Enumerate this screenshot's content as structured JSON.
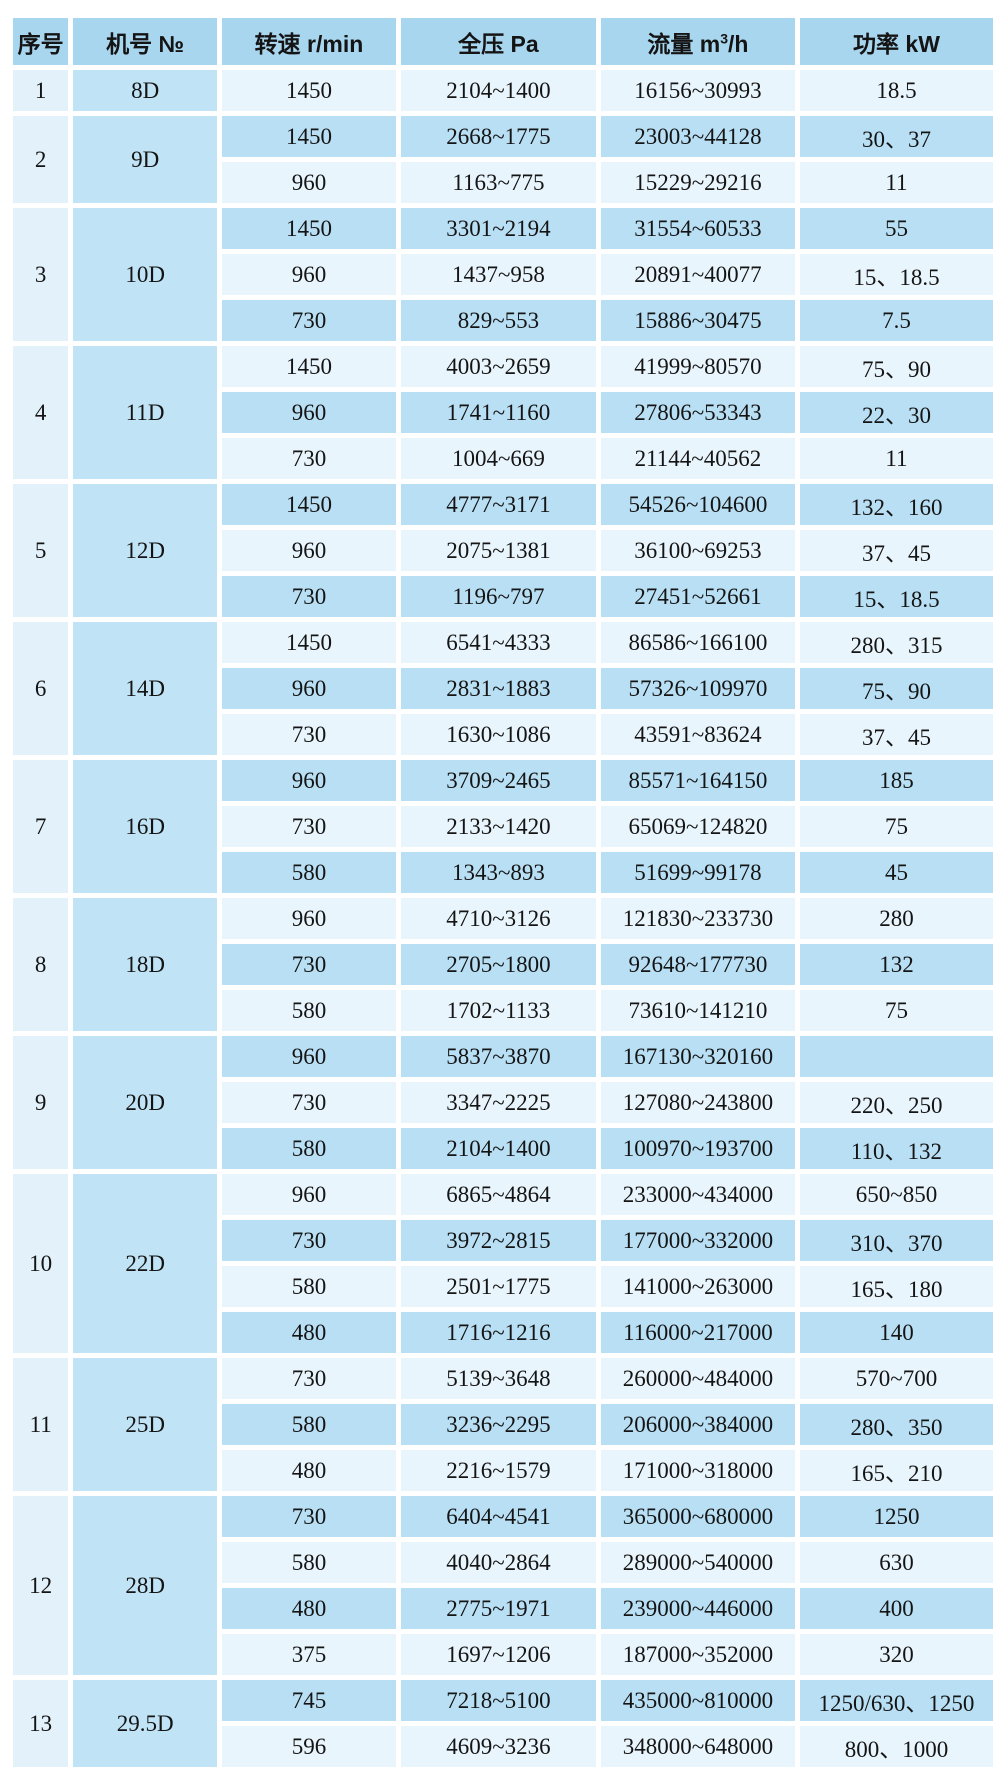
{
  "table": {
    "title_semantic": "fan-specification-table",
    "columns": {
      "index": "序号",
      "model": "机号 №",
      "speed": "转速 r/min",
      "pressure": "全压 Pa",
      "flow_pre": "流量 m",
      "flow_sup": "3",
      "flow_post": "/h",
      "power": "功率 kW"
    },
    "groups": [
      {
        "index": "1",
        "model": "8D",
        "rows": [
          [
            "1450",
            "2104~1400",
            "16156~30993",
            "18.5"
          ]
        ]
      },
      {
        "index": "2",
        "model": "9D",
        "rows": [
          [
            "1450",
            "2668~1775",
            "23003~44128",
            "30、37"
          ],
          [
            "960",
            "1163~775",
            "15229~29216",
            "11"
          ]
        ]
      },
      {
        "index": "3",
        "model": "10D",
        "rows": [
          [
            "1450",
            "3301~2194",
            "31554~60533",
            "55"
          ],
          [
            "960",
            "1437~958",
            "20891~40077",
            "15、18.5"
          ],
          [
            "730",
            "829~553",
            "15886~30475",
            "7.5"
          ]
        ]
      },
      {
        "index": "4",
        "model": "11D",
        "rows": [
          [
            "1450",
            "4003~2659",
            "41999~80570",
            "75、90"
          ],
          [
            "960",
            "1741~1160",
            "27806~53343",
            "22、30"
          ],
          [
            "730",
            "1004~669",
            "21144~40562",
            "11"
          ]
        ]
      },
      {
        "index": "5",
        "model": "12D",
        "rows": [
          [
            "1450",
            "4777~3171",
            "54526~104600",
            "132、160"
          ],
          [
            "960",
            "2075~1381",
            "36100~69253",
            "37、45"
          ],
          [
            "730",
            "1196~797",
            "27451~52661",
            "15、18.5"
          ]
        ]
      },
      {
        "index": "6",
        "model": "14D",
        "rows": [
          [
            "1450",
            "6541~4333",
            "86586~166100",
            "280、315"
          ],
          [
            "960",
            "2831~1883",
            "57326~109970",
            "75、90"
          ],
          [
            "730",
            "1630~1086",
            "43591~83624",
            "37、45"
          ]
        ]
      },
      {
        "index": "7",
        "model": "16D",
        "rows": [
          [
            "960",
            "3709~2465",
            "85571~164150",
            "185"
          ],
          [
            "730",
            "2133~1420",
            "65069~124820",
            "75"
          ],
          [
            "580",
            "1343~893",
            "51699~99178",
            "45"
          ]
        ]
      },
      {
        "index": "8",
        "model": "18D",
        "rows": [
          [
            "960",
            "4710~3126",
            "121830~233730",
            "280"
          ],
          [
            "730",
            "2705~1800",
            "92648~177730",
            "132"
          ],
          [
            "580",
            "1702~1133",
            "73610~141210",
            "75"
          ]
        ]
      },
      {
        "index": "9",
        "model": "20D",
        "rows": [
          [
            "960",
            "5837~3870",
            "167130~320160",
            ""
          ],
          [
            "730",
            "3347~2225",
            "127080~243800",
            "220、250"
          ],
          [
            "580",
            "2104~1400",
            "100970~193700",
            "110、132"
          ]
        ]
      },
      {
        "index": "10",
        "model": "22D",
        "rows": [
          [
            "960",
            "6865~4864",
            "233000~434000",
            "650~850"
          ],
          [
            "730",
            "3972~2815",
            "177000~332000",
            "310、370"
          ],
          [
            "580",
            "2501~1775",
            "141000~263000",
            "165、180"
          ],
          [
            "480",
            "1716~1216",
            "116000~217000",
            "140"
          ]
        ]
      },
      {
        "index": "11",
        "model": "25D",
        "rows": [
          [
            "730",
            "5139~3648",
            "260000~484000",
            "570~700"
          ],
          [
            "580",
            "3236~2295",
            "206000~384000",
            "280、350"
          ],
          [
            "480",
            "2216~1579",
            "171000~318000",
            "165、210"
          ]
        ]
      },
      {
        "index": "12",
        "model": "28D",
        "rows": [
          [
            "730",
            "6404~4541",
            "365000~680000",
            "1250"
          ],
          [
            "580",
            "4040~2864",
            "289000~540000",
            "630"
          ],
          [
            "480",
            "2775~1971",
            "239000~446000",
            "400"
          ],
          [
            "375",
            "1697~1206",
            "187000~352000",
            "320"
          ]
        ]
      },
      {
        "index": "13",
        "model": "29.5D",
        "rows": [
          [
            "745",
            "7218~5100",
            "435000~810000",
            "1250/630、1250"
          ],
          [
            "596",
            "4609~3236",
            "348000~648000",
            "800、1000"
          ]
        ]
      }
    ]
  },
  "colors": {
    "header_bg": "#a9d6ef",
    "row_light_bg": "#e9f5fc",
    "row_dark_bg": "#b9dff4",
    "index_col_bg": "#e2f1fa",
    "model_col_bg": "#c0e4f6",
    "gridline": "#ffffff",
    "text": "#141414"
  }
}
